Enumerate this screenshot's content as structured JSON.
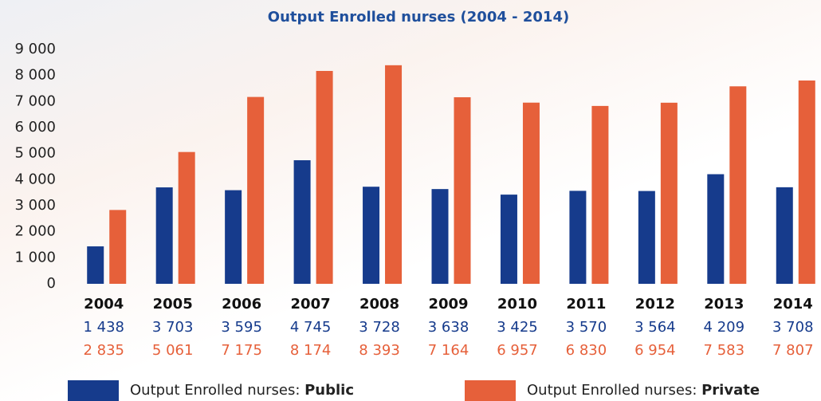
{
  "chart_data": {
    "type": "bar",
    "title": "Output Enrolled nurses  (2004 - 2014)",
    "categories": [
      "2004",
      "2005",
      "2006",
      "2007",
      "2008",
      "2009",
      "2010",
      "2011",
      "2012",
      "2013",
      "2014"
    ],
    "series": [
      {
        "name": "Output Enrolled nurses: Public",
        "color": "#163b8c",
        "values": [
          1438,
          3703,
          3595,
          4745,
          3728,
          3638,
          3425,
          3570,
          3564,
          4209,
          3708
        ],
        "value_labels": [
          "1 438",
          "3 703",
          "3 595",
          "4 745",
          "3 728",
          "3 638",
          "3 425",
          "3 570",
          "3 564",
          "4 209",
          "3 708"
        ]
      },
      {
        "name": "Output Enrolled nurses: Private",
        "color": "#e6603a",
        "values": [
          2835,
          5061,
          7175,
          8174,
          8393,
          7164,
          6957,
          6830,
          6954,
          7583,
          7807
        ],
        "value_labels": [
          "2 835",
          "5 061",
          "7 175",
          "8 174",
          "8 393",
          "7 164",
          "6 957",
          "6 830",
          "6 954",
          "7 583",
          "7 807"
        ]
      }
    ],
    "ylim": [
      0,
      9000
    ],
    "yticks": [
      0,
      {
        "value": 1000,
        "label": "1 000"
      },
      {
        "value": 2000,
        "label": "2 000"
      },
      {
        "value": 3000,
        "label": "3 000"
      },
      {
        "value": 4000,
        "label": "4 000"
      },
      {
        "value": 5000,
        "label": "5 000"
      },
      {
        "value": 6000,
        "label": "6 000"
      },
      {
        "value": 7000,
        "label": "7 000"
      },
      {
        "value": 8000,
        "label": "8 000"
      },
      {
        "value": 9000,
        "label": "9 000"
      }
    ],
    "grid": false
  }
}
